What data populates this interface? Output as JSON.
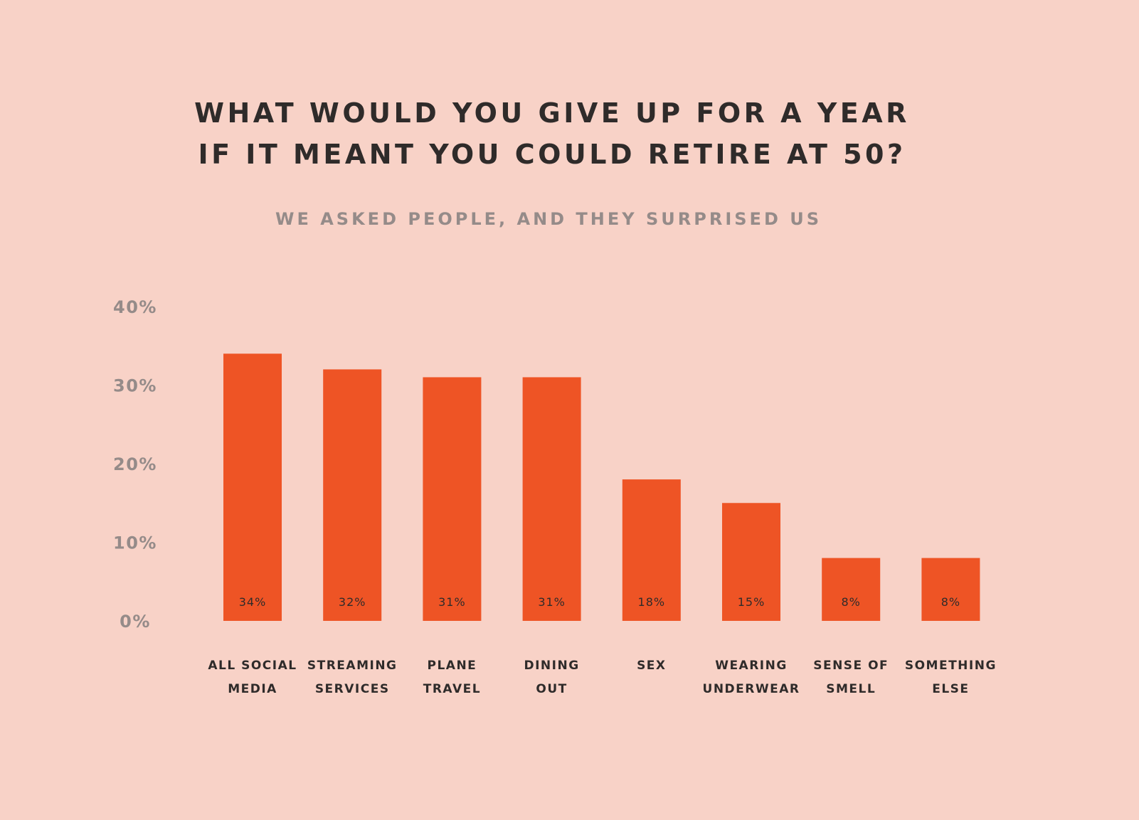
{
  "title": {
    "line1": "WHAT WOULD YOU GIVE UP FOR A YEAR",
    "line2": "IF IT MEANT YOU COULD RETIRE AT 50?"
  },
  "subtitle": "WE ASKED PEOPLE, AND THEY SURPRISED US",
  "colors": {
    "background": "#f8d2c7",
    "bar": "#ee5425",
    "title": "#2f2b2a",
    "muted": "#958b89"
  },
  "chart_data": {
    "type": "bar",
    "title": "WHAT WOULD YOU GIVE UP FOR A YEAR IF IT MEANT YOU COULD RETIRE AT 50?",
    "subtitle": "WE ASKED PEOPLE, AND THEY SURPRISED US",
    "categories": [
      [
        "ALL SOCIAL",
        "MEDIA"
      ],
      [
        "STREAMING",
        "SERVICES"
      ],
      [
        "PLANE",
        "TRAVEL"
      ],
      [
        "DINING",
        "OUT"
      ],
      [
        "SEX"
      ],
      [
        "WEARING",
        "UNDERWEAR"
      ],
      [
        "SENSE OF",
        "SMELL"
      ],
      [
        "SOMETHING",
        "ELSE"
      ]
    ],
    "values": [
      34,
      32,
      31,
      31,
      18,
      15,
      8,
      8
    ],
    "value_labels": [
      "34%",
      "32%",
      "31%",
      "31%",
      "18%",
      "15%",
      "8%",
      "8%"
    ],
    "ylim": [
      0,
      40
    ],
    "yticks": [
      0,
      10,
      20,
      30,
      40
    ],
    "ytick_labels": [
      "0%",
      "10%",
      "20%",
      "30%",
      "40%"
    ],
    "xlabel": "",
    "ylabel": "",
    "grid": false,
    "legend": "none"
  }
}
